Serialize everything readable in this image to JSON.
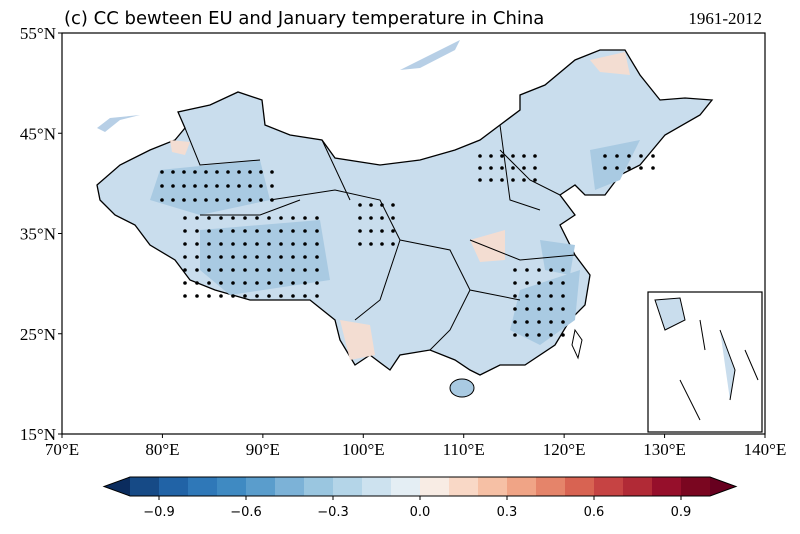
{
  "chart_data": {
    "type": "map",
    "title": "(c) CC bewteen EU and January temperature in China",
    "subtitle": "1961-2012",
    "xlim": [
      70,
      140
    ],
    "xticks": [
      {
        "value": 70,
        "label": "70°E"
      },
      {
        "value": 80,
        "label": "80°E"
      },
      {
        "value": 90,
        "label": "90°E"
      },
      {
        "value": 100,
        "label": "100°E"
      },
      {
        "value": 110,
        "label": "110°E"
      },
      {
        "value": 120,
        "label": "120°E"
      },
      {
        "value": 130,
        "label": "130°E"
      },
      {
        "value": 140,
        "label": "140°E"
      }
    ],
    "ylim": [
      15,
      55
    ],
    "yticks": [
      {
        "value": 15,
        "label": "15°N"
      },
      {
        "value": 25,
        "label": "25°N"
      },
      {
        "value": 35,
        "label": "35°N"
      },
      {
        "value": 45,
        "label": "45°N"
      },
      {
        "value": 55,
        "label": "55°N"
      }
    ],
    "colorbar": {
      "clim": [
        -1,
        1
      ],
      "extend": "both",
      "under": "#0b2c5e",
      "over": "#67001f",
      "colors": [
        "#164a86",
        "#2163a6",
        "#2f78b8",
        "#3f8ac2",
        "#5a9dcc",
        "#7cb2d7",
        "#9ac6e0",
        "#b4d5e8",
        "#cde2ef",
        "#e4eef4",
        "#f8ece4",
        "#f9d8c6",
        "#f6c0a5",
        "#f0a486",
        "#e5846a",
        "#d86352",
        "#c64343",
        "#b12a36",
        "#960f2b",
        "#7a0620"
      ],
      "ticks": [
        {
          "value": -0.9,
          "label": "−0.9"
        },
        {
          "value": -0.6,
          "label": "−0.6"
        },
        {
          "value": -0.3,
          "label": "−0.3"
        },
        {
          "value": 0,
          "label": "0.0"
        },
        0.3,
        0.6,
        0.9
      ]
    }
  }
}
